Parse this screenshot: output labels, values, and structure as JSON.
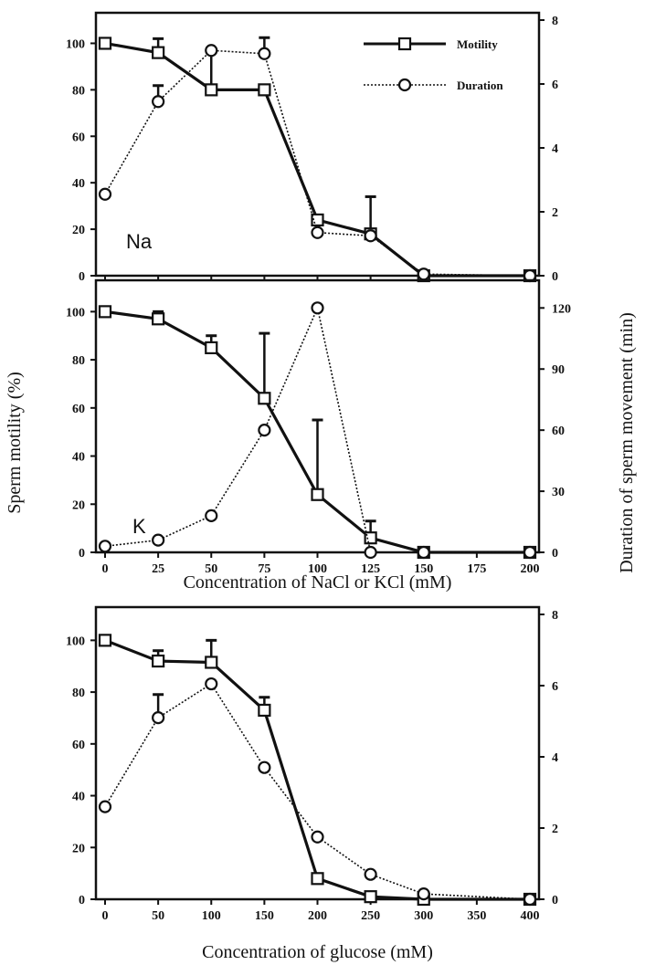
{
  "figure": {
    "shared_left_axis_label": "Sperm motility (%)",
    "shared_right_axis_label": "Duration of sperm movement (min)"
  },
  "colors": {
    "ink": "#111111",
    "background": "#ffffff"
  },
  "chart_data": [
    {
      "type": "line",
      "panel_label": "Na",
      "xlabel": "",
      "ylabel": "Sperm motility (%)",
      "y2label": "Duration of sperm movement (min)",
      "x": [
        0,
        25,
        50,
        75,
        100,
        125,
        150,
        200
      ],
      "xlim": [
        0,
        200
      ],
      "ylim": [
        0,
        110
      ],
      "y2lim": [
        0,
        8
      ],
      "yticks": [
        0,
        20,
        40,
        60,
        80,
        100
      ],
      "y2ticks": [
        0,
        2,
        4,
        6,
        8
      ],
      "series": [
        {
          "name": "Motility",
          "axis": "left",
          "marker": "square",
          "style": "solid-thick",
          "values": [
            100,
            96,
            80,
            80,
            24,
            18,
            0,
            0
          ],
          "error_upper": [
            null,
            102,
            96,
            null,
            null,
            34,
            null,
            null
          ]
        },
        {
          "name": "Duration",
          "axis": "right",
          "marker": "circle",
          "style": "dotted-thin",
          "values": [
            2.55,
            5.45,
            7.05,
            6.95,
            1.35,
            1.25,
            0.05,
            0
          ],
          "error_upper": [
            null,
            5.95,
            null,
            7.45,
            null,
            null,
            null,
            null
          ]
        }
      ],
      "legend": "top-right"
    },
    {
      "type": "line",
      "panel_label": "K",
      "xlabel": "Concentration of NaCl or KCl (mM)",
      "ylabel": "Sperm motility (%)",
      "y2label": "Duration of sperm movement (min)",
      "x": [
        0,
        25,
        50,
        75,
        100,
        125,
        150,
        200
      ],
      "xlim": [
        0,
        200
      ],
      "ylim": [
        0,
        110
      ],
      "y2lim": [
        0,
        130
      ],
      "xticks": [
        0,
        25,
        50,
        75,
        100,
        125,
        150,
        175,
        200
      ],
      "yticks": [
        0,
        20,
        40,
        60,
        80,
        100
      ],
      "y2ticks": [
        0,
        30,
        60,
        90,
        120
      ],
      "series": [
        {
          "name": "Motility",
          "axis": "left",
          "marker": "square",
          "style": "solid-thick",
          "values": [
            100,
            97,
            85,
            64,
            24,
            6,
            0,
            0
          ],
          "error_upper": [
            null,
            100,
            90,
            91,
            55,
            13,
            null,
            null
          ]
        },
        {
          "name": "Duration",
          "axis": "right",
          "marker": "circle",
          "style": "dotted-thin",
          "values": [
            3,
            6,
            18,
            60,
            120,
            0,
            0,
            0
          ],
          "error_upper": [
            null,
            null,
            null,
            null,
            null,
            null,
            null,
            null
          ]
        }
      ]
    },
    {
      "type": "line",
      "panel_label": "",
      "xlabel": "Concentration of glucose (mM)",
      "ylabel": "Sperm motility (%)",
      "y2label": "Duration of sperm movement (min)",
      "x": [
        0,
        50,
        100,
        150,
        200,
        250,
        300,
        400
      ],
      "xlim": [
        0,
        400
      ],
      "ylim": [
        0,
        110
      ],
      "y2lim": [
        0,
        8
      ],
      "xticks": [
        0,
        50,
        100,
        150,
        200,
        250,
        300,
        350,
        400
      ],
      "yticks": [
        0,
        20,
        40,
        60,
        80,
        100
      ],
      "y2ticks": [
        0,
        2,
        4,
        6,
        8
      ],
      "series": [
        {
          "name": "Motility",
          "axis": "left",
          "marker": "square",
          "style": "solid-thick",
          "values": [
            100,
            92,
            91.5,
            73,
            8,
            1,
            0,
            0
          ],
          "error_upper": [
            null,
            96,
            100,
            78,
            null,
            null,
            null,
            null
          ]
        },
        {
          "name": "Duration",
          "axis": "right",
          "marker": "circle",
          "style": "dotted-thin",
          "values": [
            2.6,
            5.1,
            6.05,
            3.7,
            1.75,
            0.7,
            0.15,
            0
          ],
          "error_upper": [
            null,
            5.75,
            null,
            null,
            null,
            null,
            null,
            null
          ]
        }
      ]
    }
  ]
}
